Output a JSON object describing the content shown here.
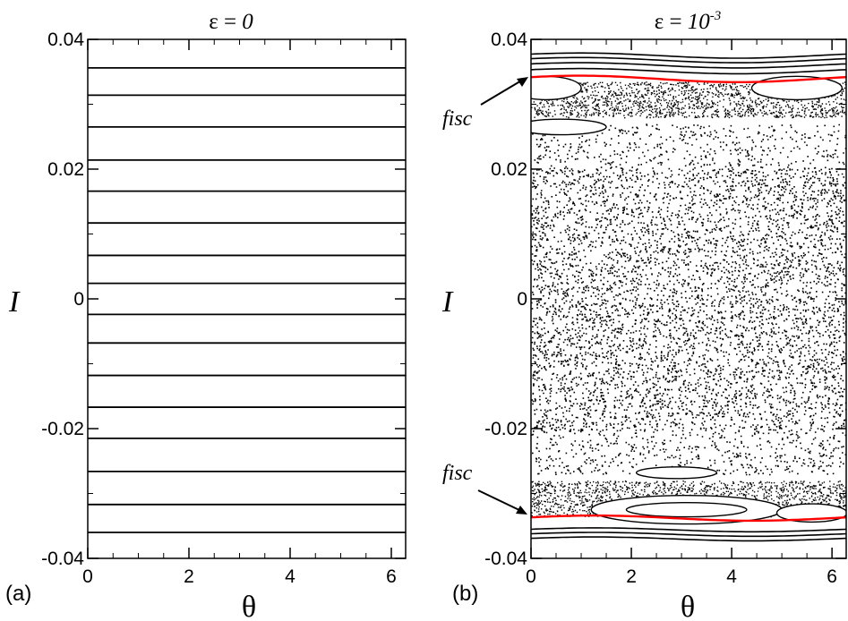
{
  "chart_data": [
    {
      "type": "line",
      "title_symbol": "ε",
      "title_eq": " = ",
      "title_value": "0",
      "title_exp": "",
      "xlabel": "θ",
      "ylabel": "I",
      "panel_label": "(a)",
      "xlim": [
        0,
        6.2832
      ],
      "ylim": [
        -0.04,
        0.04
      ],
      "x_ticks": [
        0,
        2,
        4,
        6
      ],
      "x_tick_labels": [
        "0",
        "2",
        "4",
        "6"
      ],
      "y_ticks": [
        0.04,
        0.02,
        0,
        -0.02,
        -0.04
      ],
      "y_tick_labels": [
        "0.04",
        "0.02",
        "0",
        "-0.02",
        "-0.04"
      ],
      "grid": false,
      "series_values": [
        0.0356,
        0.0314,
        0.0265,
        0.0214,
        0.0166,
        0.0117,
        0.0067,
        0.0024,
        -0.0024,
        -0.0068,
        -0.0118,
        -0.0167,
        -0.0215,
        -0.0266,
        -0.0317,
        -0.036
      ],
      "line_color": "#000000"
    },
    {
      "type": "scatter",
      "title_symbol": "ε",
      "title_eq": " = ",
      "title_value": "10",
      "title_exp": "-3",
      "xlabel": "θ",
      "ylabel": "I",
      "panel_label": "(b)",
      "xlim": [
        0,
        6.2832
      ],
      "ylim": [
        -0.04,
        0.04
      ],
      "x_ticks": [
        0,
        2,
        4,
        6
      ],
      "x_tick_labels": [
        "0",
        "2",
        "4",
        "6"
      ],
      "y_ticks": [
        0.04,
        0.02,
        0,
        -0.02,
        -0.04
      ],
      "y_tick_labels": [
        "0.04",
        "0.02",
        "0",
        "-0.02",
        "-0.04"
      ],
      "grid": false,
      "chaotic_band": [
        -0.027,
        0.027
      ],
      "fisc": [
        {
          "label": "fisc",
          "mean": 0.0339,
          "amplitude": 0.0005,
          "color": "#ff0000"
        },
        {
          "label": "fisc",
          "mean": -0.0338,
          "amplitude": 0.0004,
          "color": "#ff0000"
        }
      ],
      "outer_curves_top": [
        0.0375,
        0.0368,
        0.036,
        0.0351
      ],
      "outer_curves_bottom": [
        -0.0356,
        -0.0363,
        -0.037
      ],
      "islands": [
        {
          "x": 0.3,
          "y": 0.0325,
          "rx": 0.7,
          "ry": 0.0018
        },
        {
          "x": 5.3,
          "y": 0.0325,
          "rx": 0.9,
          "ry": 0.0018
        },
        {
          "x": 0.6,
          "y": 0.0265,
          "rx": 0.9,
          "ry": 0.0012
        },
        {
          "x": 3.1,
          "y": -0.0325,
          "rx": 1.9,
          "ry": 0.0022
        },
        {
          "x": 3.1,
          "y": -0.0325,
          "rx": 1.2,
          "ry": 0.0011
        },
        {
          "x": 2.9,
          "y": -0.0268,
          "rx": 0.8,
          "ry": 0.0009
        },
        {
          "x": 5.6,
          "y": -0.033,
          "rx": 0.7,
          "ry": 0.0014
        }
      ],
      "point_color": "#000000"
    }
  ]
}
